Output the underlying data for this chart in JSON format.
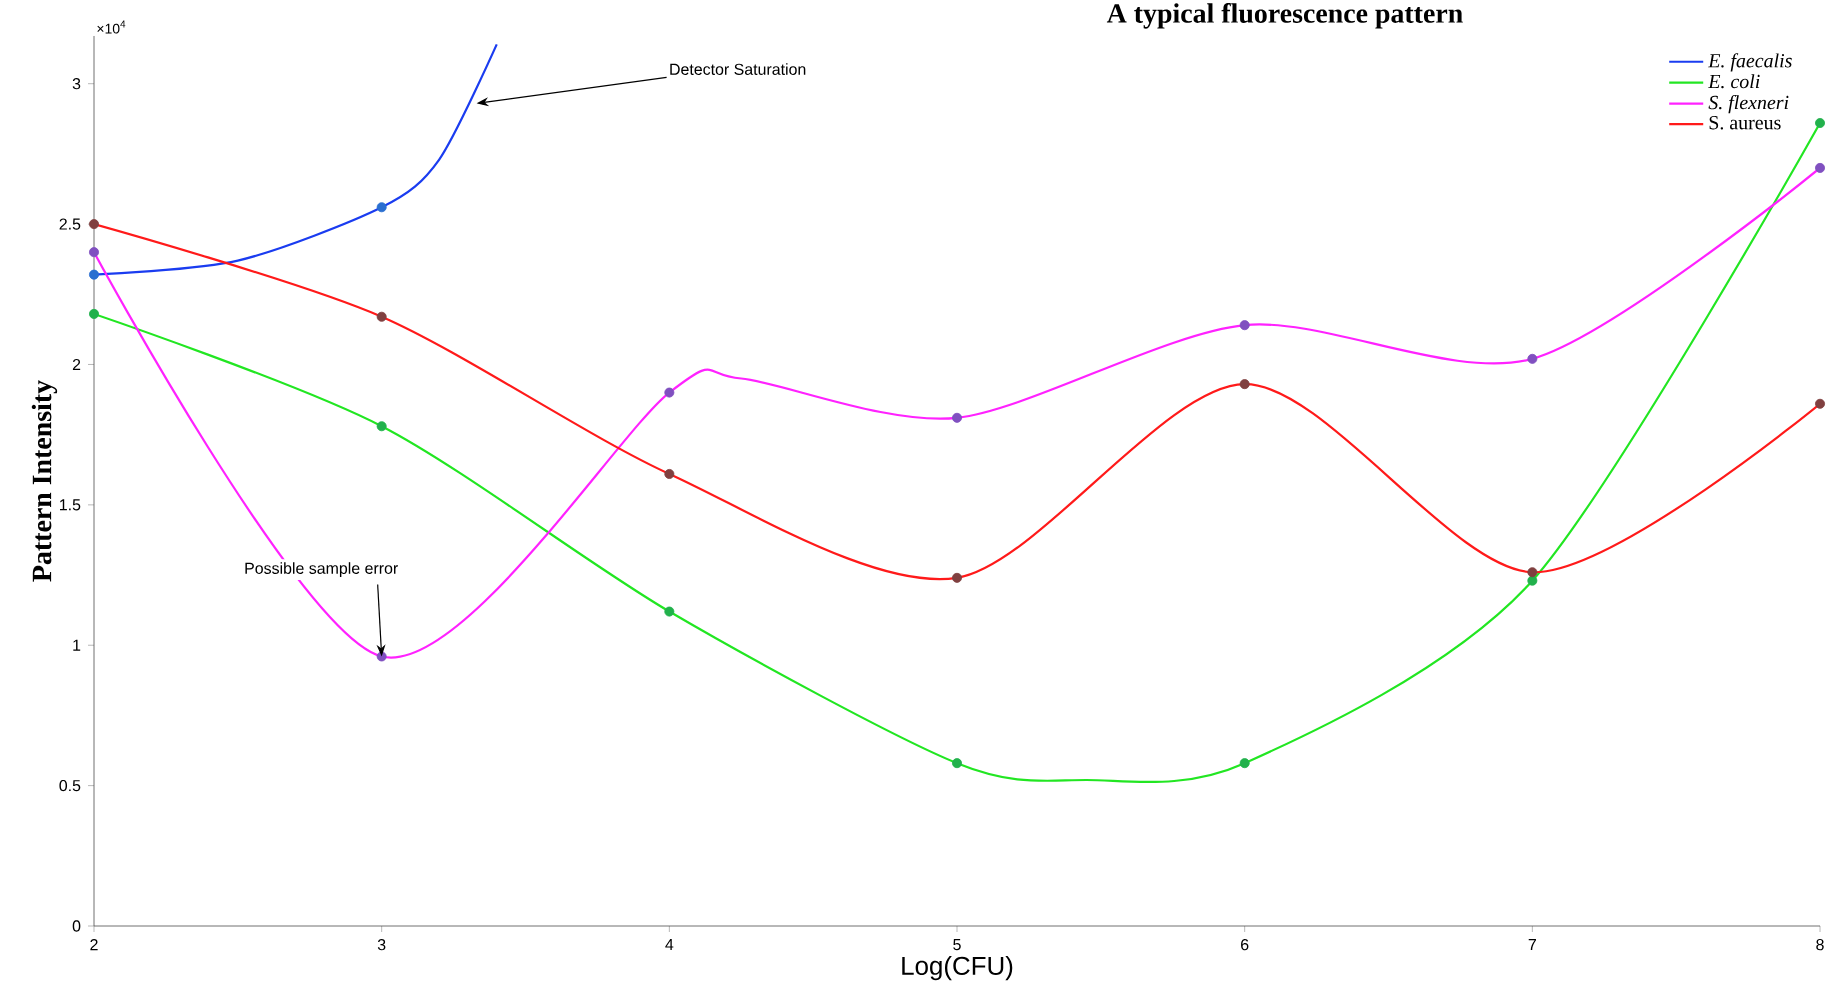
{
  "chart_data": {
    "type": "line",
    "title": "A typical fluorescence pattern",
    "xlabel": "Log(CFU)",
    "ylabel": "Pattern Intensity",
    "xlim": [
      2,
      8
    ],
    "ylim": [
      0,
      3.17
    ],
    "xticks": [
      2,
      3,
      4,
      5,
      6,
      7,
      8
    ],
    "yticks": [
      0,
      0.5,
      1,
      1.5,
      2,
      2.5,
      3
    ],
    "grid": false,
    "legend": "top right",
    "series": [
      {
        "name": "*E. faecalis*",
        "color": "#1a3cf0",
        "x": [
          2,
          2.5,
          3,
          3.2,
          3.4
        ],
        "values": [
          2.32,
          2.37,
          2.56,
          2.73,
          3.14
        ]
      },
      {
        "name": "*E. coli*",
        "color": "#22e622",
        "x": [
          2,
          3,
          4,
          5,
          5.45,
          6,
          7,
          8
        ],
        "values": [
          2.18,
          1.78,
          1.12,
          0.58,
          0.52,
          0.58,
          1.23,
          2.86
        ]
      },
      {
        "name": "*S. flexneri*",
        "color": "#ff22ff",
        "x": [
          2,
          3,
          4,
          4.25,
          5,
          6,
          7,
          8
        ],
        "values": [
          2.4,
          0.96,
          1.9,
          1.95,
          1.81,
          2.14,
          2.02,
          2.7
        ]
      },
      {
        "name": "S. aureus",
        "color": "#ff1a1a",
        "x": [
          2,
          3,
          4,
          5,
          6,
          7,
          8
        ],
        "values": [
          2.5,
          2.17,
          1.61,
          1.24,
          1.93,
          1.26,
          1.86
        ]
      },
      {
        "type": "scatter",
        "marker": "circle",
        "color": "#2a6fd0",
        "x": [
          2,
          3
        ],
        "values": [
          2.32,
          2.56
        ]
      },
      {
        "type": "scatter",
        "marker": "circle",
        "color": "#22b14c",
        "x": [
          2,
          3,
          4,
          5,
          6,
          7,
          8
        ],
        "values": [
          2.18,
          1.78,
          1.12,
          0.58,
          0.58,
          1.23,
          2.86
        ]
      },
      {
        "type": "scatter",
        "marker": "circle",
        "color": "#8050c0",
        "x": [
          2,
          3,
          4,
          5,
          6,
          7,
          8
        ],
        "values": [
          2.4,
          0.96,
          1.9,
          1.81,
          2.14,
          2.02,
          2.7
        ]
      },
      {
        "type": "scatter",
        "marker": "circle",
        "color": "#804040",
        "x": [
          2,
          3,
          4,
          5,
          6,
          7,
          8
        ],
        "values": [
          2.5,
          2.17,
          1.61,
          1.24,
          1.93,
          1.26,
          1.86
        ]
      }
    ],
    "annotations": [
      "×10$^{4}$",
      {
        "text": "Detector Saturation",
        "x": 3.33,
        "y": 2.93
      },
      {
        "text": "Possible sample error",
        "x": 3,
        "y": 0.96
      }
    ]
  }
}
